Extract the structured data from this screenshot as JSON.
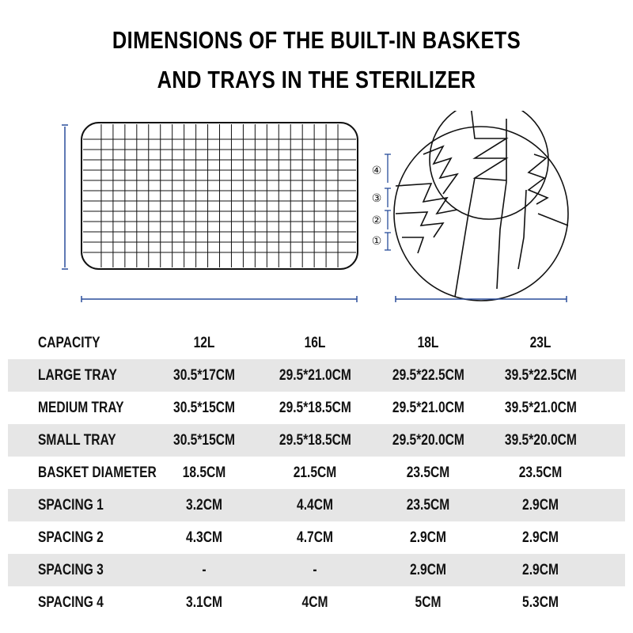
{
  "title": {
    "line1": "DIMENSIONS OF THE BUILT-IN BASKETS",
    "line2": "AND TRAYS IN THE STERILIZER"
  },
  "diagram": {
    "spacing_markers": [
      "④",
      "③",
      "②",
      "①"
    ],
    "accent_color": "#2a4d9b"
  },
  "table": {
    "header": {
      "label": "CAPACITY",
      "values": [
        "12L",
        "16L",
        "18L",
        "23L"
      ]
    },
    "rows": [
      {
        "label": "LARGE TRAY",
        "values": [
          "30.5*17CM",
          "29.5*21.0CM",
          "29.5*22.5CM",
          "39.5*22.5CM"
        ],
        "shaded": true
      },
      {
        "label": "MEDIUM TRAY",
        "values": [
          "30.5*15CM",
          "29.5*18.5CM",
          "29.5*21.0CM",
          "39.5*21.0CM"
        ],
        "shaded": false
      },
      {
        "label": "SMALL TRAY",
        "values": [
          "30.5*15CM",
          "29.5*18.5CM",
          "29.5*20.0CM",
          "39.5*20.0CM"
        ],
        "shaded": true
      },
      {
        "label": "BASKET DIAMETER",
        "values": [
          "18.5CM",
          "21.5CM",
          "23.5CM",
          "23.5CM"
        ],
        "shaded": false
      },
      {
        "label": "SPACING 1",
        "values": [
          "3.2CM",
          "4.4CM",
          "23.5CM",
          "2.9CM"
        ],
        "shaded": true
      },
      {
        "label": "SPACING 2",
        "values": [
          "4.3CM",
          "4.7CM",
          "2.9CM",
          "2.9CM"
        ],
        "shaded": false
      },
      {
        "label": "SPACING 3",
        "values": [
          "-",
          "-",
          "2.9CM",
          "2.9CM"
        ],
        "shaded": true
      },
      {
        "label": "SPACING 4",
        "values": [
          "3.1CM",
          "4CM",
          "5CM",
          "5.3CM"
        ],
        "shaded": false
      }
    ]
  }
}
